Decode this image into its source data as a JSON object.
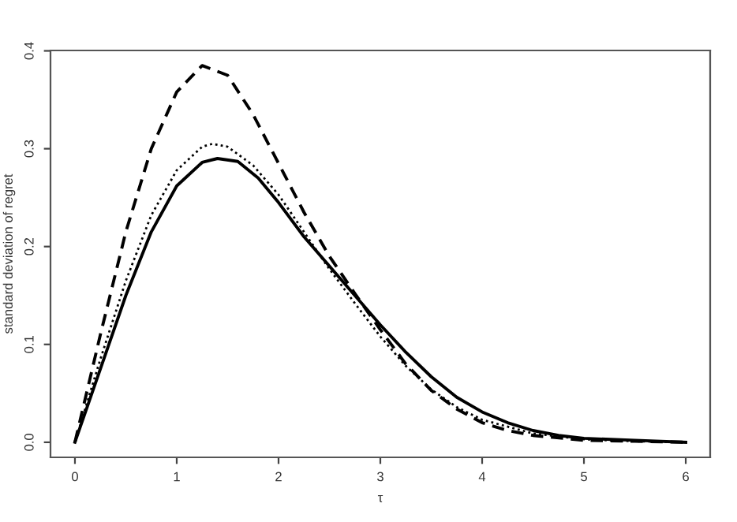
{
  "chart_data": {
    "type": "line",
    "xlabel": "τ",
    "ylabel": "standard deviation of regret",
    "xlim": [
      -0.24,
      6.24
    ],
    "ylim": [
      -0.0154,
      0.4004
    ],
    "xticks": [
      0,
      1,
      2,
      3,
      4,
      5,
      6
    ],
    "yticks": [
      {
        "value": 0,
        "label": "0.0"
      },
      {
        "value": 0.1,
        "label": "0.1"
      },
      {
        "value": 0.2,
        "label": "0.2"
      },
      {
        "value": 0.3,
        "label": "0.3"
      },
      {
        "value": 0.4,
        "label": "0.4"
      }
    ],
    "grid": false,
    "legend": false,
    "marker": "none",
    "series": [
      {
        "color": "#000000",
        "line_style": "solid",
        "x": [
          0,
          0.25,
          0.5,
          0.75,
          1.0,
          1.25,
          1.4,
          1.6,
          1.8,
          2.0,
          2.25,
          2.5,
          2.75,
          3.0,
          3.25,
          3.5,
          3.75,
          4.0,
          4.25,
          4.5,
          4.75,
          5.0,
          5.5,
          6.0
        ],
        "values": [
          0,
          0.075,
          0.15,
          0.215,
          0.262,
          0.286,
          0.29,
          0.287,
          0.27,
          0.245,
          0.21,
          0.18,
          0.15,
          0.12,
          0.092,
          0.067,
          0.046,
          0.031,
          0.02,
          0.012,
          0.007,
          0.004,
          0.002,
          0
        ]
      },
      {
        "color": "#000000",
        "line_style": "dashed",
        "x": [
          0,
          0.25,
          0.5,
          0.75,
          1.0,
          1.25,
          1.5,
          1.75,
          2.0,
          2.25,
          2.5,
          2.75,
          3.0,
          3.25,
          3.5,
          3.75,
          4.0,
          4.25,
          4.5,
          5.0,
          5.5,
          6.0
        ],
        "values": [
          0,
          0.11,
          0.215,
          0.3,
          0.358,
          0.385,
          0.375,
          0.335,
          0.285,
          0.235,
          0.19,
          0.152,
          0.115,
          0.08,
          0.053,
          0.034,
          0.02,
          0.012,
          0.007,
          0.002,
          0.001,
          0
        ]
      },
      {
        "color": "#000000",
        "line_style": "dotted",
        "x": [
          0,
          0.25,
          0.5,
          0.75,
          1.0,
          1.25,
          1.35,
          1.5,
          1.75,
          2.0,
          2.25,
          2.5,
          2.75,
          3.0,
          3.25,
          3.5,
          3.75,
          4.0,
          4.5,
          5.0,
          5.5,
          6.0
        ],
        "values": [
          0,
          0.085,
          0.165,
          0.232,
          0.278,
          0.302,
          0.305,
          0.302,
          0.283,
          0.253,
          0.215,
          0.177,
          0.142,
          0.108,
          0.078,
          0.054,
          0.036,
          0.023,
          0.009,
          0.003,
          0.001,
          0
        ]
      }
    ]
  }
}
